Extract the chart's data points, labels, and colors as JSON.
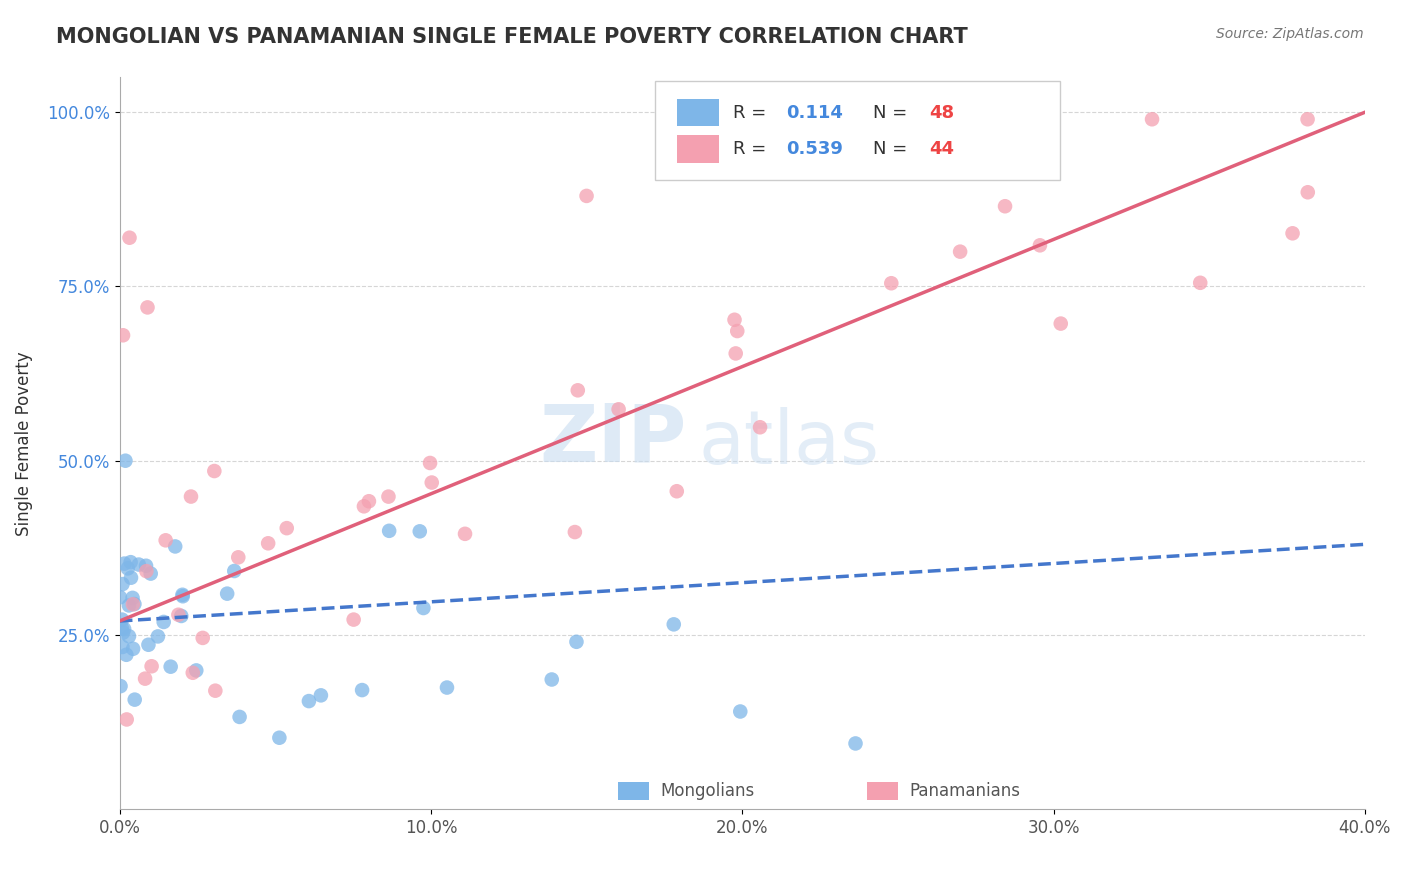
{
  "title": "MONGOLIAN VS PANAMANIAN SINGLE FEMALE POVERTY CORRELATION CHART",
  "source_text": "Source: ZipAtlas.com",
  "xlabel": "",
  "ylabel": "Single Female Poverty",
  "xlim": [
    0.0,
    0.4
  ],
  "ylim": [
    0.0,
    1.05
  ],
  "yticks": [
    0.25,
    0.5,
    0.75,
    1.0
  ],
  "ytick_labels": [
    "25.0%",
    "50.0%",
    "75.0%",
    "100.0%"
  ],
  "xticks": [
    0.0,
    0.1,
    0.2,
    0.3,
    0.4
  ],
  "xtick_labels": [
    "0.0%",
    "10.0%",
    "20.0%",
    "30.0%",
    "40.0%"
  ],
  "legend_r_mongolian": "0.114",
  "legend_n_mongolian": "48",
  "legend_r_panamanian": "0.539",
  "legend_n_panamanian": "44",
  "color_mongolian": "#7EB6E8",
  "color_panamanian": "#F4A0B0",
  "color_trend_mongolian": "#4477CC",
  "color_trend_panamanian": "#E0607A",
  "color_r_value": "#4488DD",
  "color_n_value": "#EE4444",
  "watermark_zip": "ZIP",
  "watermark_atlas": "atlas",
  "background_color": "#FFFFFF",
  "grid_color": "#CCCCCC",
  "mong_slope": 0.114,
  "mong_intercept": 0.26,
  "pana_slope": 1.65,
  "pana_intercept": 0.28
}
